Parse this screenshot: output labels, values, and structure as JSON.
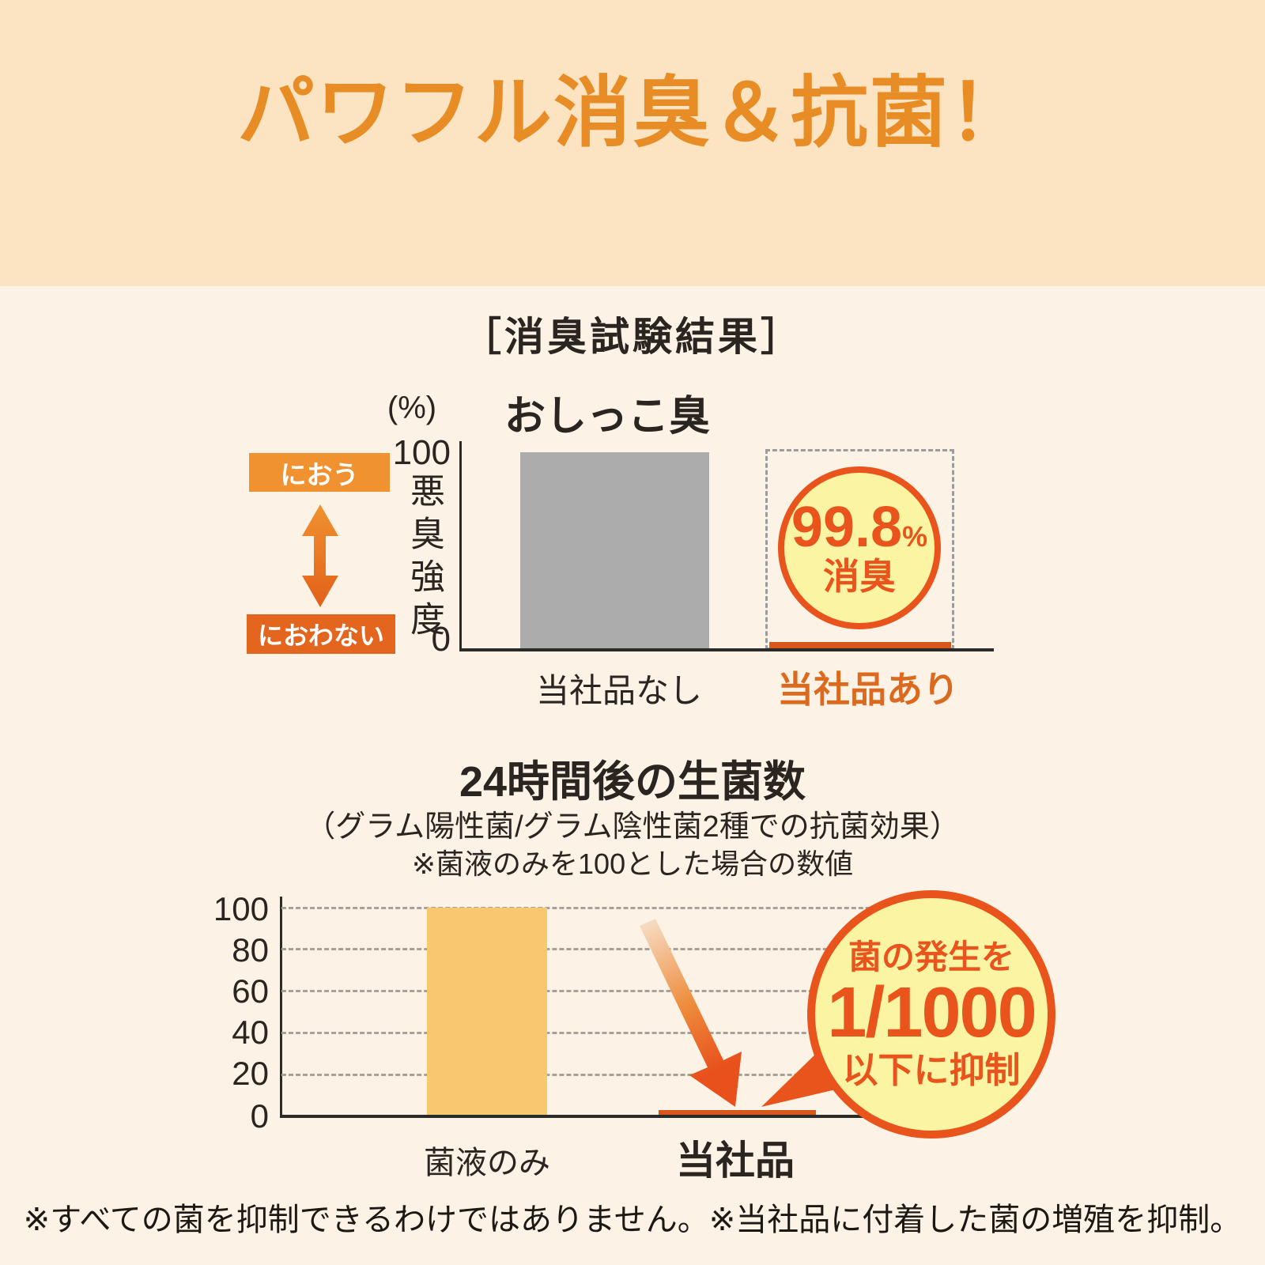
{
  "banner": {
    "title": "パワフル消臭＆抗菌！"
  },
  "section_title": "［消臭試験結果］",
  "odor_chart": {
    "title": "おしっこ臭",
    "unit_label": "(%)",
    "y_axis_label": "悪臭強度",
    "badge": {
      "value": "99.8",
      "percent": "%",
      "label": "消臭"
    }
  },
  "bacteria_chart": {
    "title": "24時間後の生菌数",
    "subtitle": "（グラム陽性菌/グラム陰性菌2種での抗菌効果）",
    "note": "※菌液のみを100とした場合の数値",
    "bubble": {
      "line1": "菌の発生を",
      "line2": "1/1000",
      "line3": "以下に抑制"
    }
  },
  "footnote": "※すべての菌を抑制できるわけではありません。※当社品に付着した菌の増殖を抑制。",
  "colors": {
    "banner_bg": "#FCE4C3",
    "body_bg": "#FDF2E6",
    "title_orange": "#E88D26",
    "accent_orange": "#E8541C",
    "scale_high_badge": "#F0922F",
    "scale_low_badge": "#E4661E",
    "bar_gray": "#ACACAC",
    "bar_yellow": "#F8C76F",
    "tiny_bar_orange": "#D8571C",
    "circle_fill_yellow": "#FBF4A3",
    "category_orange": "#DC6A1E",
    "text_dark": "#2A2520"
  },
  "chart_data": [
    {
      "type": "bar",
      "title": "おしっこ臭",
      "unit": "%",
      "ylabel": "悪臭強度",
      "ylim": [
        0,
        100
      ],
      "yticks": [
        0,
        100
      ],
      "scale_labels": {
        "high": "におう",
        "low": "におわない"
      },
      "categories": [
        "当社品なし",
        "当社品あり"
      ],
      "values": [
        100,
        0.2
      ],
      "annotations": [
        "",
        "99.8%消臭"
      ],
      "grid": false,
      "legend_position": "none"
    },
    {
      "type": "bar",
      "title": "24時間後の生菌数",
      "subtitle": "（グラム陽性菌/グラム陰性菌2種での抗菌効果）",
      "note": "※菌液のみを100とした場合の数値",
      "ylim": [
        0,
        100
      ],
      "yticks": [
        0,
        20,
        40,
        60,
        80,
        100
      ],
      "categories": [
        "菌液のみ",
        "当社品"
      ],
      "values": [
        100,
        0.1
      ],
      "annotations": [
        "",
        "菌の発生を1/1000以下に抑制"
      ],
      "grid": true,
      "legend_position": "none"
    }
  ]
}
